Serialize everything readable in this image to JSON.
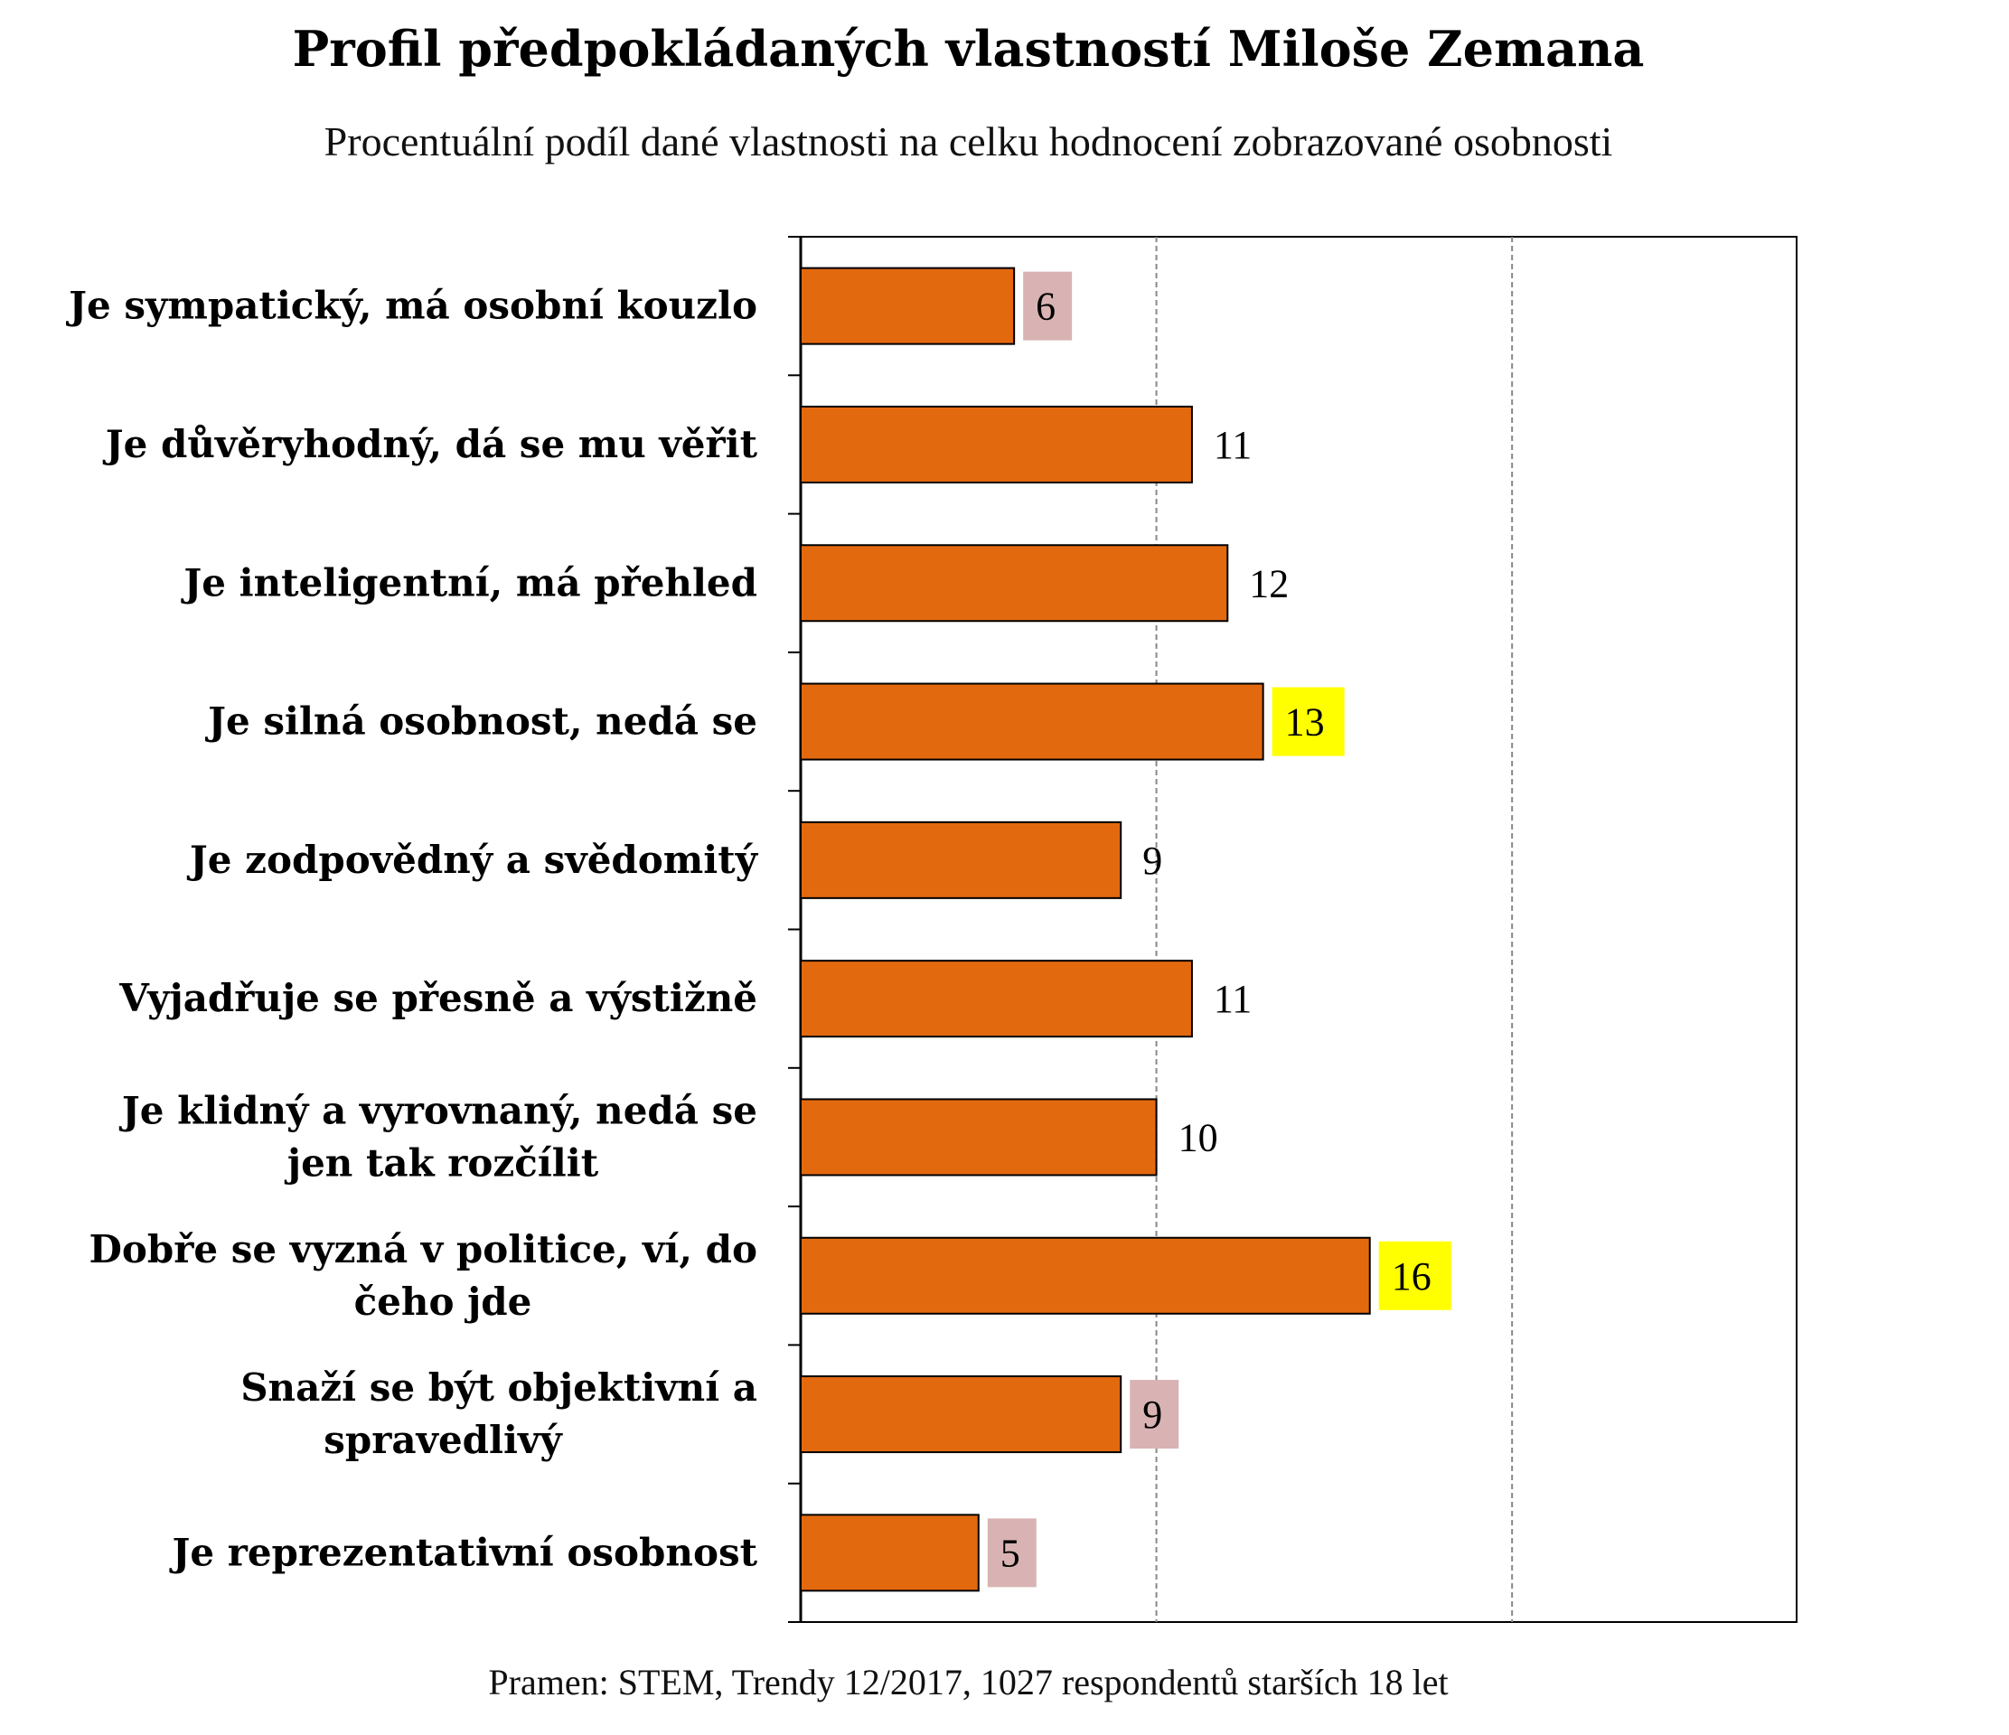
{
  "chart_data": {
    "type": "bar",
    "orientation": "horizontal",
    "title": "Profil předpokládaných  vlastností Miloše  Zemana",
    "subtitle": "Procentuální podíl dané vlastnosti na celku hodnocení zobrazované osobnosti",
    "categories": [
      [
        "Je sympatický, má  osobní  kouzlo"
      ],
      [
        "Je důvěryhodný,  dá se mu věřit"
      ],
      [
        "Je inteligentní, má  přehled"
      ],
      [
        "Je silná osobnost, nedá se"
      ],
      [
        "Je zodpovědný  a  svědomitý"
      ],
      [
        "Vyjadřuje se přesně a výstižně"
      ],
      [
        "Je klidný  a vyrovnaný, nedá se",
        "jen tak rozčílit"
      ],
      [
        "Dobře se vyzná v politice, ví, do",
        "čeho jde"
      ],
      [
        "Snaží se být objektivní a",
        "spravedlivý"
      ],
      [
        "Je reprezentativní osobnost"
      ]
    ],
    "values": [
      6,
      11,
      12,
      13,
      9,
      11,
      10,
      16,
      9,
      5
    ],
    "value_label_highlight": [
      "pink",
      "none",
      "none",
      "yellow",
      "none",
      "none",
      "none",
      "yellow",
      "pink",
      "pink"
    ],
    "xlim": [
      0,
      28
    ],
    "gridlines": [
      10,
      20
    ],
    "source": "Pramen: STEM,  Trendy  12/2017,  1027 respondentů  starších  18 let"
  },
  "colors": {
    "bar_fill": "#E3690F",
    "bar_stroke": "#000000",
    "highlight_yellow": "#FFFF00",
    "highlight_pink": "#D9B3B3",
    "grid": "#888888"
  }
}
